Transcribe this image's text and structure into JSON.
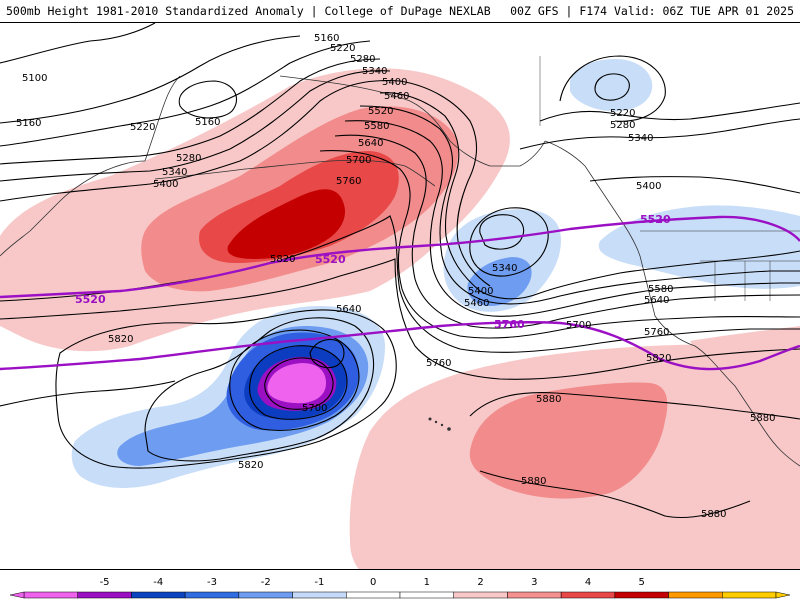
{
  "header": {
    "title_left": "500mb Height 1981-2010 Standardized Anomaly | College of DuPage NEXLAB",
    "title_right": "00Z GFS | F174 Valid: 06Z TUE APR 01 2025"
  },
  "contour_labels": {
    "c5100": "5100",
    "c5160a": "5160",
    "c5160b": "5160",
    "c5160c": "5160",
    "c5220a": "5220",
    "c5220b": "5220",
    "c5220c": "5220",
    "c5280a": "5280",
    "c5280b": "5280",
    "c5280c": "5280",
    "c5340a": "5340",
    "c5340b": "5340",
    "c5340c": "5340",
    "c5340d": "5340",
    "c5400a": "5400",
    "c5400b": "5400",
    "c5400c": "5400",
    "c5400d": "5400",
    "c5460a": "5460",
    "c5460b": "5460",
    "c5520a": "5520",
    "c5580a": "5580",
    "c5580b": "5580",
    "c5640a": "5640",
    "c5640b": "5640",
    "c5640c": "5640",
    "c5700a": "5700",
    "c5700b": "5700",
    "c5700c": "5700",
    "c5760a": "5760",
    "c5760b": "5760",
    "c5760c": "5760",
    "c5820a": "5820",
    "c5820b": "5820",
    "c5820c": "5820",
    "c5820d": "5820",
    "c5880a": "5880",
    "c5880b": "5880",
    "c5880c": "5880",
    "c5880d": "5880"
  },
  "reference_labels": {
    "r5520a": "5520",
    "r5520b": "5520",
    "r5520c": "5520",
    "r5760": "5760"
  },
  "colorbar": {
    "ticks": [
      "-5",
      "-4",
      "-3",
      "-2",
      "-1",
      "0",
      "1",
      "2",
      "3",
      "4",
      "5"
    ],
    "colors": [
      "#ee62ee",
      "#9a10c2",
      "#0c44c0",
      "#2f6de0",
      "#6e9cf0",
      "#c4daf8",
      "#ffffff",
      "#ffffff",
      "#f8c8c8",
      "#f49090",
      "#e84848",
      "#c40000",
      "#ff9900",
      "#ffcc00"
    ]
  },
  "shading_colors": {
    "pos1": "#f8c8c8",
    "pos2": "#f28c8c",
    "pos3": "#e84848",
    "pos4": "#c40000",
    "neg1": "#c8ddf8",
    "neg2": "#6e9cf0",
    "neg3": "#2f5fe0",
    "neg4": "#0c3cc0",
    "neg5": "#9a10c2",
    "neg6": "#ee62ee",
    "ref": "#9b10c4"
  }
}
